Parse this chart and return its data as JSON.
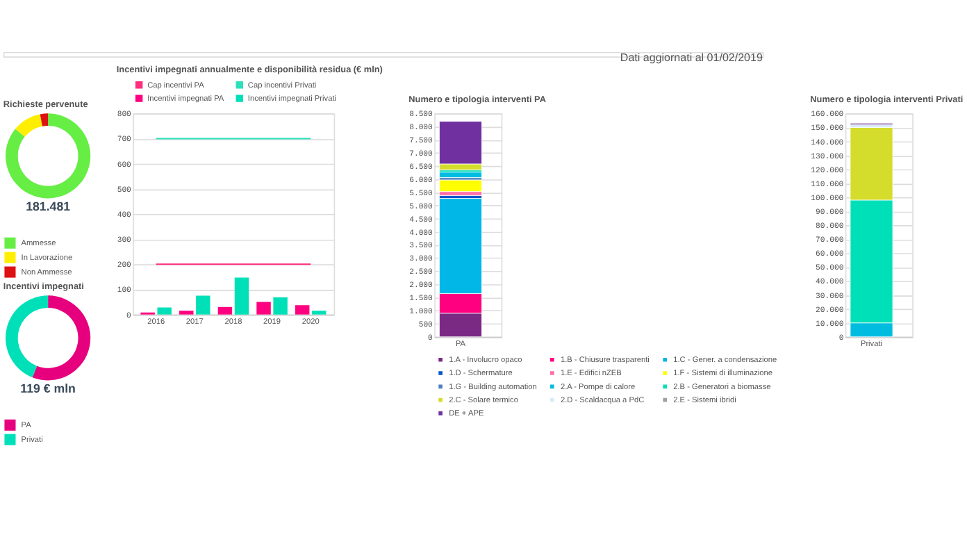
{
  "chart_data": [
    {
      "type": "donut",
      "title": "Richieste pervenute",
      "categories": [
        "Ammesse",
        "In Lavorazione",
        "Non Ammesse"
      ],
      "values": [
        86,
        11,
        3
      ],
      "colors": [
        "#66ee44",
        "#ffee00",
        "#dd1111"
      ],
      "legend": "bottom left",
      "annotations": [
        "181.481"
      ]
    },
    {
      "type": "donut",
      "title": "Incentivi impegnati",
      "categories": [
        "PA",
        "Privati"
      ],
      "values": [
        56,
        44
      ],
      "colors": [
        "#e6007e",
        "#00e0b8"
      ],
      "legend": "bottom left",
      "annotations": [
        "119 € mln"
      ]
    },
    {
      "type": "bar",
      "title": "Incentivi impegnati annualmente e disponibilità residua (€ mln)",
      "categories": [
        "2016",
        "2017",
        "2018",
        "2019",
        "2020"
      ],
      "ylim": [
        0,
        800
      ],
      "yticks": [
        0,
        100,
        200,
        300,
        400,
        500,
        600,
        700,
        800
      ],
      "grid": "y",
      "legend": "top",
      "series": [
        {
          "name": "Cap incentivi PA",
          "type": "line",
          "color": "#ff2d7e",
          "values": [
            200,
            200,
            200,
            200,
            200
          ]
        },
        {
          "name": "Cap incentivi Privati",
          "type": "line",
          "color": "#2de0bb",
          "values": [
            700,
            700,
            700,
            700,
            700
          ]
        },
        {
          "name": "Incentivi impegnati PA",
          "color": "#ff0080",
          "values": [
            8,
            15,
            30,
            50,
            37
          ]
        },
        {
          "name": "Incentivi impegnati Privati",
          "color": "#00e0b8",
          "values": [
            28,
            75,
            147,
            68,
            15
          ]
        }
      ]
    },
    {
      "type": "bar",
      "stacked": true,
      "title": "Numero e tipologia interventi PA",
      "categories": [
        "PA"
      ],
      "ylim": [
        0,
        8500
      ],
      "grid": "y",
      "legend": "bottom",
      "yticks": [
        0,
        500,
        {
          "value": 1000,
          "label": "1.000"
        },
        {
          "value": 1500,
          "label": "1.500"
        },
        {
          "value": 2000,
          "label": "2.000"
        },
        {
          "value": 2500,
          "label": "2.500"
        },
        {
          "value": 3000,
          "label": "3.000"
        },
        {
          "value": 3500,
          "label": "3.500"
        },
        {
          "value": 4000,
          "label": "4.000"
        },
        {
          "value": 4500,
          "label": "4.500"
        },
        {
          "value": 5000,
          "label": "5.000"
        },
        {
          "value": 5500,
          "label": "5.500"
        },
        {
          "value": 6000,
          "label": "6.000"
        },
        {
          "value": 6500,
          "label": "6.500"
        },
        {
          "value": 7000,
          "label": "7.000"
        },
        {
          "value": 7500,
          "label": "7.500"
        },
        {
          "value": 8000,
          "label": "8.000"
        },
        {
          "value": 8500,
          "label": "8.500"
        }
      ],
      "series": [
        {
          "name": "1.A - Involucro opaco",
          "color": "#7b2a84",
          "values": [
            900
          ]
        },
        {
          "name": "1.B - Chiusure trasparenti",
          "color": "#ff0080",
          "values": [
            750
          ]
        },
        {
          "name": "1.C - Gener. a condensazione",
          "color": "#00b7e8",
          "values": [
            3620
          ]
        },
        {
          "name": "1.D - Schermature",
          "color": "#0055c8",
          "values": [
            110
          ]
        },
        {
          "name": "1.E - Edifici nZEB",
          "color": "#ff6ea8",
          "values": [
            150
          ]
        },
        {
          "name": "1.F - Sistemi di illuminazione",
          "color": "#ffff00",
          "values": [
            440
          ]
        },
        {
          "name": "1.G - Building automation",
          "color": "#5080c0",
          "values": [
            90
          ]
        },
        {
          "name": "2.A - Pompe di calore",
          "color": "#00bde0",
          "values": [
            210
          ]
        },
        {
          "name": "2.B - Generatori a biomasse",
          "color": "#00e0b8",
          "values": [
            80
          ]
        },
        {
          "name": "2.C - Solare termico",
          "color": "#d4dc2c",
          "values": [
            230
          ]
        },
        {
          "name": "2.D - Scaldacqua a PdC",
          "color": "#d8eef4",
          "values": [
            null
          ]
        },
        {
          "name": "2.E - Sistemi ibridi",
          "color": "#a0a0a0",
          "values": [
            null
          ]
        },
        {
          "name": "DE + APE",
          "color": "#7030a0",
          "values": [
            1620
          ]
        }
      ]
    },
    {
      "type": "bar",
      "stacked": true,
      "title": "Numero e tipologia interventi Privati",
      "categories": [
        "Privati"
      ],
      "ylim": [
        0,
        160000
      ],
      "grid": "y",
      "annotations": [
        "Dati aggiornati al 01/02/2019"
      ],
      "yticks": [
        0,
        {
          "value": 10000,
          "label": "10.000"
        },
        {
          "value": 20000,
          "label": "20.000"
        },
        {
          "value": 30000,
          "label": "30.000"
        },
        {
          "value": 40000,
          "label": "40.000"
        },
        {
          "value": 50000,
          "label": "50.000"
        },
        {
          "value": 60000,
          "label": "60.000"
        },
        {
          "value": 70000,
          "label": "70.000"
        },
        {
          "value": 80000,
          "label": "80.000"
        },
        {
          "value": 90000,
          "label": "90.000"
        },
        {
          "value": 100000,
          "label": "100.000"
        },
        {
          "value": 110000,
          "label": "110.000"
        },
        {
          "value": 120000,
          "label": "120.000"
        },
        {
          "value": 130000,
          "label": "130.000"
        },
        {
          "value": 140000,
          "label": "140.000"
        },
        {
          "value": 150000,
          "label": "150.000"
        },
        {
          "value": 160000,
          "label": "160.000"
        }
      ],
      "series": [
        {
          "color": "#00bde0",
          "values": [
            10000
          ]
        },
        {
          "color": "#00e0b8",
          "values": [
            88000
          ]
        },
        {
          "color": "#d4dc2c",
          "values": [
            52000
          ]
        },
        {
          "color": "#d8eef4",
          "values": [
            2000
          ]
        },
        {
          "color": "#7030a0",
          "values": [
            1000
          ]
        }
      ]
    }
  ]
}
